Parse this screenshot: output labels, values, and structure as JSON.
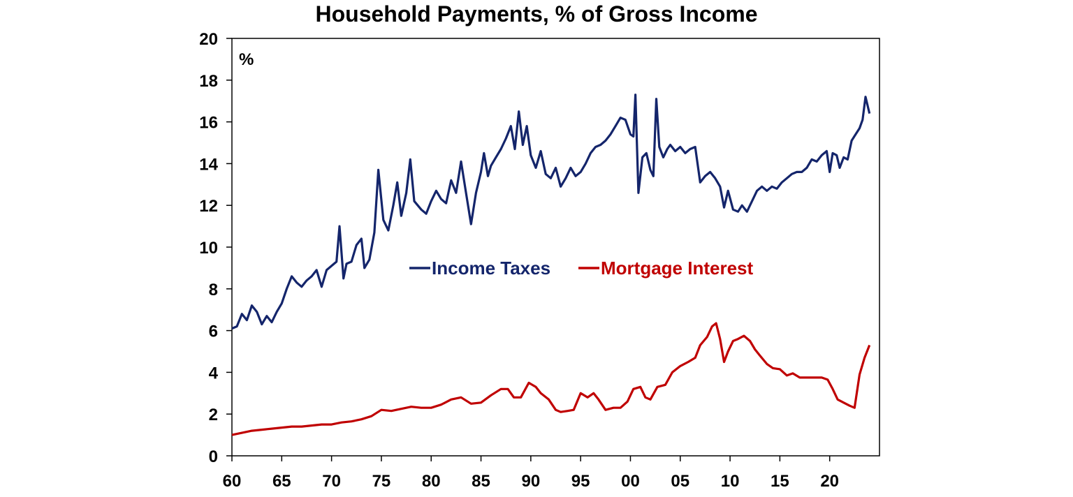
{
  "chart_data": {
    "type": "line",
    "title": "Household Payments, % of Gross Income",
    "unit_label": "%",
    "xlabel": "",
    "ylabel": "",
    "xlim": [
      1960,
      2025
    ],
    "ylim": [
      0,
      20
    ],
    "y_ticks": [
      0,
      2,
      4,
      6,
      8,
      10,
      12,
      14,
      16,
      18,
      20
    ],
    "x_ticks": [
      {
        "value": 1960,
        "label": "60"
      },
      {
        "value": 1965,
        "label": "65"
      },
      {
        "value": 1970,
        "label": "70"
      },
      {
        "value": 1975,
        "label": "75"
      },
      {
        "value": 1980,
        "label": "80"
      },
      {
        "value": 1985,
        "label": "85"
      },
      {
        "value": 1990,
        "label": "90"
      },
      {
        "value": 1995,
        "label": "95"
      },
      {
        "value": 2000,
        "label": "00"
      },
      {
        "value": 2005,
        "label": "05"
      },
      {
        "value": 2010,
        "label": "10"
      },
      {
        "value": 2015,
        "label": "15"
      },
      {
        "value": 2020,
        "label": "20"
      }
    ],
    "grid": false,
    "legend_position": "center",
    "series": [
      {
        "name": "Income Taxes",
        "color": "#14256b",
        "points": [
          [
            1960.0,
            6.1
          ],
          [
            1960.5,
            6.2
          ],
          [
            1961.0,
            6.8
          ],
          [
            1961.5,
            6.5
          ],
          [
            1962.0,
            7.2
          ],
          [
            1962.5,
            6.9
          ],
          [
            1963.0,
            6.3
          ],
          [
            1963.5,
            6.7
          ],
          [
            1964.0,
            6.4
          ],
          [
            1964.5,
            6.9
          ],
          [
            1965.0,
            7.3
          ],
          [
            1965.5,
            8.0
          ],
          [
            1966.0,
            8.6
          ],
          [
            1966.5,
            8.3
          ],
          [
            1967.0,
            8.1
          ],
          [
            1967.5,
            8.4
          ],
          [
            1968.0,
            8.6
          ],
          [
            1968.5,
            8.9
          ],
          [
            1969.0,
            8.1
          ],
          [
            1969.5,
            8.9
          ],
          [
            1970.0,
            9.1
          ],
          [
            1970.5,
            9.3
          ],
          [
            1970.8,
            11.0
          ],
          [
            1971.2,
            8.5
          ],
          [
            1971.5,
            9.2
          ],
          [
            1972.0,
            9.3
          ],
          [
            1972.5,
            10.1
          ],
          [
            1973.0,
            10.4
          ],
          [
            1973.3,
            9.0
          ],
          [
            1973.8,
            9.4
          ],
          [
            1974.3,
            10.7
          ],
          [
            1974.7,
            13.7
          ],
          [
            1975.2,
            11.3
          ],
          [
            1975.7,
            10.8
          ],
          [
            1976.2,
            12.0
          ],
          [
            1976.6,
            13.1
          ],
          [
            1977.0,
            11.5
          ],
          [
            1977.5,
            12.6
          ],
          [
            1977.9,
            14.2
          ],
          [
            1978.3,
            12.2
          ],
          [
            1979.0,
            11.8
          ],
          [
            1979.5,
            11.6
          ],
          [
            1980.0,
            12.2
          ],
          [
            1980.5,
            12.7
          ],
          [
            1981.0,
            12.3
          ],
          [
            1981.5,
            12.1
          ],
          [
            1982.0,
            13.2
          ],
          [
            1982.5,
            12.6
          ],
          [
            1983.0,
            14.1
          ],
          [
            1983.5,
            12.6
          ],
          [
            1984.0,
            11.1
          ],
          [
            1984.5,
            12.6
          ],
          [
            1985.0,
            13.6
          ],
          [
            1985.3,
            14.5
          ],
          [
            1985.7,
            13.4
          ],
          [
            1986.0,
            13.9
          ],
          [
            1986.5,
            14.3
          ],
          [
            1987.0,
            14.7
          ],
          [
            1987.5,
            15.2
          ],
          [
            1988.0,
            15.8
          ],
          [
            1988.4,
            14.7
          ],
          [
            1988.8,
            16.5
          ],
          [
            1989.2,
            14.9
          ],
          [
            1989.6,
            15.8
          ],
          [
            1990.0,
            14.4
          ],
          [
            1990.5,
            13.8
          ],
          [
            1991.0,
            14.6
          ],
          [
            1991.5,
            13.5
          ],
          [
            1992.0,
            13.3
          ],
          [
            1992.5,
            13.8
          ],
          [
            1993.0,
            12.9
          ],
          [
            1993.5,
            13.3
          ],
          [
            1994.0,
            13.8
          ],
          [
            1994.5,
            13.4
          ],
          [
            1995.0,
            13.6
          ],
          [
            1995.5,
            14.0
          ],
          [
            1996.0,
            14.5
          ],
          [
            1996.5,
            14.8
          ],
          [
            1997.0,
            14.9
          ],
          [
            1997.5,
            15.1
          ],
          [
            1998.0,
            15.4
          ],
          [
            1998.5,
            15.8
          ],
          [
            1999.0,
            16.2
          ],
          [
            1999.5,
            16.1
          ],
          [
            2000.0,
            15.4
          ],
          [
            2000.3,
            15.3
          ],
          [
            2000.5,
            17.3
          ],
          [
            2000.8,
            12.6
          ],
          [
            2001.2,
            14.3
          ],
          [
            2001.6,
            14.5
          ],
          [
            2002.0,
            13.7
          ],
          [
            2002.3,
            13.4
          ],
          [
            2002.6,
            17.1
          ],
          [
            2002.9,
            14.8
          ],
          [
            2003.3,
            14.3
          ],
          [
            2003.7,
            14.7
          ],
          [
            2004.0,
            14.9
          ],
          [
            2004.5,
            14.6
          ],
          [
            2005.0,
            14.8
          ],
          [
            2005.5,
            14.5
          ],
          [
            2006.0,
            14.7
          ],
          [
            2006.5,
            14.8
          ],
          [
            2007.0,
            13.1
          ],
          [
            2007.5,
            13.4
          ],
          [
            2008.0,
            13.6
          ],
          [
            2008.5,
            13.3
          ],
          [
            2009.0,
            12.9
          ],
          [
            2009.4,
            11.9
          ],
          [
            2009.8,
            12.7
          ],
          [
            2010.3,
            11.8
          ],
          [
            2010.8,
            11.7
          ],
          [
            2011.2,
            12.0
          ],
          [
            2011.7,
            11.7
          ],
          [
            2012.2,
            12.2
          ],
          [
            2012.7,
            12.7
          ],
          [
            2013.2,
            12.9
          ],
          [
            2013.7,
            12.7
          ],
          [
            2014.2,
            12.9
          ],
          [
            2014.7,
            12.8
          ],
          [
            2015.2,
            13.1
          ],
          [
            2015.7,
            13.3
          ],
          [
            2016.2,
            13.5
          ],
          [
            2016.7,
            13.6
          ],
          [
            2017.2,
            13.6
          ],
          [
            2017.7,
            13.8
          ],
          [
            2018.2,
            14.2
          ],
          [
            2018.7,
            14.1
          ],
          [
            2019.2,
            14.4
          ],
          [
            2019.7,
            14.6
          ],
          [
            2020.0,
            13.6
          ],
          [
            2020.3,
            14.5
          ],
          [
            2020.7,
            14.4
          ],
          [
            2021.0,
            13.8
          ],
          [
            2021.4,
            14.3
          ],
          [
            2021.8,
            14.2
          ],
          [
            2022.2,
            15.1
          ],
          [
            2022.6,
            15.4
          ],
          [
            2023.0,
            15.7
          ],
          [
            2023.3,
            16.1
          ],
          [
            2023.6,
            17.2
          ],
          [
            2024.0,
            16.4
          ]
        ]
      },
      {
        "name": "Mortgage Interest",
        "color": "#c00000",
        "points": [
          [
            1960.0,
            1.0
          ],
          [
            1961.0,
            1.1
          ],
          [
            1962.0,
            1.2
          ],
          [
            1963.0,
            1.25
          ],
          [
            1964.0,
            1.3
          ],
          [
            1965.0,
            1.35
          ],
          [
            1966.0,
            1.4
          ],
          [
            1967.0,
            1.4
          ],
          [
            1968.0,
            1.45
          ],
          [
            1969.0,
            1.5
          ],
          [
            1970.0,
            1.5
          ],
          [
            1971.0,
            1.6
          ],
          [
            1972.0,
            1.65
          ],
          [
            1973.0,
            1.75
          ],
          [
            1974.0,
            1.9
          ],
          [
            1975.0,
            2.2
          ],
          [
            1976.0,
            2.15
          ],
          [
            1977.0,
            2.25
          ],
          [
            1978.0,
            2.35
          ],
          [
            1979.0,
            2.3
          ],
          [
            1980.0,
            2.3
          ],
          [
            1981.0,
            2.45
          ],
          [
            1982.0,
            2.7
          ],
          [
            1983.0,
            2.8
          ],
          [
            1984.0,
            2.5
          ],
          [
            1985.0,
            2.55
          ],
          [
            1986.0,
            2.9
          ],
          [
            1987.0,
            3.2
          ],
          [
            1987.7,
            3.2
          ],
          [
            1988.3,
            2.8
          ],
          [
            1989.0,
            2.8
          ],
          [
            1989.8,
            3.5
          ],
          [
            1990.5,
            3.3
          ],
          [
            1991.0,
            3.0
          ],
          [
            1991.8,
            2.7
          ],
          [
            1992.5,
            2.2
          ],
          [
            1993.0,
            2.1
          ],
          [
            1993.7,
            2.15
          ],
          [
            1994.3,
            2.2
          ],
          [
            1995.0,
            3.0
          ],
          [
            1995.7,
            2.8
          ],
          [
            1996.3,
            3.0
          ],
          [
            1996.8,
            2.7
          ],
          [
            1997.5,
            2.2
          ],
          [
            1998.3,
            2.3
          ],
          [
            1999.0,
            2.3
          ],
          [
            1999.7,
            2.6
          ],
          [
            2000.3,
            3.2
          ],
          [
            2001.0,
            3.3
          ],
          [
            2001.5,
            2.8
          ],
          [
            2002.0,
            2.7
          ],
          [
            2002.7,
            3.3
          ],
          [
            2003.5,
            3.4
          ],
          [
            2004.2,
            4.0
          ],
          [
            2005.0,
            4.3
          ],
          [
            2005.8,
            4.5
          ],
          [
            2006.5,
            4.7
          ],
          [
            2007.0,
            5.3
          ],
          [
            2007.7,
            5.7
          ],
          [
            2008.2,
            6.2
          ],
          [
            2008.6,
            6.35
          ],
          [
            2009.0,
            5.6
          ],
          [
            2009.4,
            4.5
          ],
          [
            2009.8,
            5.0
          ],
          [
            2010.3,
            5.5
          ],
          [
            2010.8,
            5.6
          ],
          [
            2011.4,
            5.75
          ],
          [
            2012.0,
            5.5
          ],
          [
            2012.5,
            5.1
          ],
          [
            2013.0,
            4.8
          ],
          [
            2013.7,
            4.4
          ],
          [
            2014.3,
            4.2
          ],
          [
            2015.0,
            4.15
          ],
          [
            2015.7,
            3.85
          ],
          [
            2016.3,
            3.95
          ],
          [
            2017.0,
            3.75
          ],
          [
            2017.8,
            3.75
          ],
          [
            2018.5,
            3.75
          ],
          [
            2019.2,
            3.75
          ],
          [
            2019.8,
            3.65
          ],
          [
            2020.3,
            3.2
          ],
          [
            2020.8,
            2.7
          ],
          [
            2021.4,
            2.55
          ],
          [
            2022.0,
            2.4
          ],
          [
            2022.5,
            2.3
          ],
          [
            2023.0,
            3.9
          ],
          [
            2023.5,
            4.7
          ],
          [
            2024.0,
            5.3
          ]
        ]
      }
    ]
  }
}
